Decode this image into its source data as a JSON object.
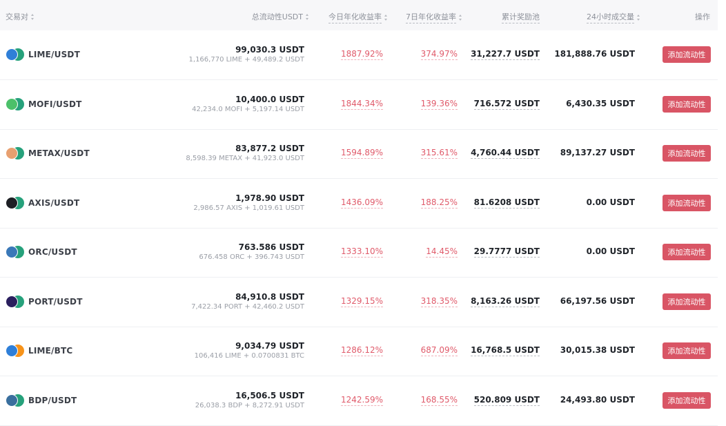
{
  "header": {
    "pair": "交易对",
    "liquidity": "总流动性USDT",
    "apy_today": "今日年化收益率",
    "apy_7d": "7日年化收益率",
    "reward_pool": "累计奖励池",
    "volume_24h": "24小时成交量",
    "action": "操作"
  },
  "colors": {
    "apy": "#e05a6a",
    "button": "#d95565",
    "header_bg": "#f7f7f9"
  },
  "rows": [
    {
      "pair": "LIME/USDT",
      "base_icon": "lime-coin-icon",
      "base_color": "#2f7fd8",
      "quote_icon": "usdt-coin-icon",
      "quote_color": "#26a17b",
      "liquidity": "99,030.3 USDT",
      "liquidity_detail": "1,166,770 LIME + 49,489.2 USDT",
      "apy_today": "1887.92%",
      "apy_7d": "374.97%",
      "reward": "31,227.7 USDT",
      "volume": "181,888.76 USDT",
      "button": "添加流动性"
    },
    {
      "pair": "MOFI/USDT",
      "base_icon": "mofi-coin-icon",
      "base_color": "#4cc06a",
      "quote_icon": "usdt-coin-icon",
      "quote_color": "#26a17b",
      "liquidity": "10,400.0 USDT",
      "liquidity_detail": "42,234.0 MOFI + 5,197.14 USDT",
      "apy_today": "1844.34%",
      "apy_7d": "139.36%",
      "reward": "716.572 USDT",
      "volume": "6,430.35 USDT",
      "button": "添加流动性"
    },
    {
      "pair": "METAX/USDT",
      "base_icon": "metax-coin-icon",
      "base_color": "#e8a070",
      "quote_icon": "usdt-coin-icon",
      "quote_color": "#26a17b",
      "liquidity": "83,877.2 USDT",
      "liquidity_detail": "8,598.39 METAX + 41,923.0 USDT",
      "apy_today": "1594.89%",
      "apy_7d": "315.61%",
      "reward": "4,760.44 USDT",
      "volume": "89,137.27 USDT",
      "button": "添加流动性"
    },
    {
      "pair": "AXIS/USDT",
      "base_icon": "axis-coin-icon",
      "base_color": "#1d1f24",
      "quote_icon": "usdt-coin-icon",
      "quote_color": "#26a17b",
      "liquidity": "1,978.90 USDT",
      "liquidity_detail": "2,986.57 AXIS + 1,019.61 USDT",
      "apy_today": "1436.09%",
      "apy_7d": "188.25%",
      "reward": "81.6208 USDT",
      "volume": "0.00 USDT",
      "button": "添加流动性"
    },
    {
      "pair": "ORC/USDT",
      "base_icon": "orc-coin-icon",
      "base_color": "#3a78b8",
      "quote_icon": "usdt-coin-icon",
      "quote_color": "#26a17b",
      "liquidity": "763.586 USDT",
      "liquidity_detail": "676.458 ORC + 396.743 USDT",
      "apy_today": "1333.10%",
      "apy_7d": "14.45%",
      "reward": "29.7777 USDT",
      "volume": "0.00 USDT",
      "button": "添加流动性"
    },
    {
      "pair": "PORT/USDT",
      "base_icon": "port-coin-icon",
      "base_color": "#2a1f5e",
      "quote_icon": "usdt-coin-icon",
      "quote_color": "#26a17b",
      "liquidity": "84,910.8 USDT",
      "liquidity_detail": "7,422.34 PORT + 42,460.2 USDT",
      "apy_today": "1329.15%",
      "apy_7d": "318.35%",
      "reward": "8,163.26 USDT",
      "volume": "66,197.56 USDT",
      "button": "添加流动性"
    },
    {
      "pair": "LIME/BTC",
      "base_icon": "lime-coin-icon",
      "base_color": "#2f7fd8",
      "quote_icon": "btc-coin-icon",
      "quote_color": "#f7931a",
      "liquidity": "9,034.79 USDT",
      "liquidity_detail": "106,416 LIME + 0.0700831 BTC",
      "apy_today": "1286.12%",
      "apy_7d": "687.09%",
      "reward": "16,768.5 USDT",
      "volume": "30,015.38 USDT",
      "button": "添加流动性"
    },
    {
      "pair": "BDP/USDT",
      "base_icon": "bdp-coin-icon",
      "base_color": "#3a6f9e",
      "quote_icon": "usdt-coin-icon",
      "quote_color": "#26a17b",
      "liquidity": "16,506.5 USDT",
      "liquidity_detail": "26,038.3 BDP + 8,272.91 USDT",
      "apy_today": "1242.59%",
      "apy_7d": "168.55%",
      "reward": "520.809 USDT",
      "volume": "24,493.80 USDT",
      "button": "添加流动性"
    }
  ]
}
